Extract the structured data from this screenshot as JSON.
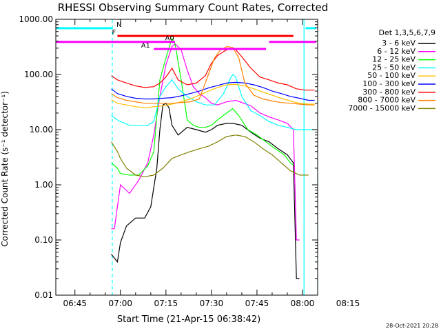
{
  "chart_data": {
    "type": "line",
    "title": "RHESSI Observing Summary Count Rates, Corrected",
    "xlabel": "Start Time (21-Apr-15 06:38:42)",
    "ylabel": "Corrected Count Rate (s⁻¹ detector⁻¹)",
    "yscale": "log",
    "xlim_min": [
      38.7,
      125.0
    ],
    "ylim": [
      0.01,
      1000
    ],
    "x_ticks": [
      {
        "min": 45,
        "label": "06:45"
      },
      {
        "min": 60,
        "label": "07:00"
      },
      {
        "min": 75,
        "label": "07:15"
      },
      {
        "min": 90,
        "label": "07:30"
      },
      {
        "min": 105,
        "label": "07:45"
      },
      {
        "min": 120,
        "label": "08:00"
      },
      {
        "min": 135,
        "label": "08:15"
      }
    ],
    "y_ticks": [
      {
        "v": 1000,
        "label": "1000.00"
      },
      {
        "v": 100,
        "label": "100.00"
      },
      {
        "v": 10,
        "label": "10.00"
      },
      {
        "v": 1,
        "label": "1.00"
      },
      {
        "v": 0.1,
        "label": "0.10"
      },
      {
        "v": 0.01,
        "label": "0.01"
      }
    ],
    "legend_title": "Det 1,3,5,6,7,9",
    "series": [
      {
        "name": "3 - 6 keV",
        "color": "#000000",
        "points": [
          [
            57,
            0.055
          ],
          [
            59,
            0.04
          ],
          [
            60,
            0.09
          ],
          [
            62,
            0.18
          ],
          [
            65,
            0.25
          ],
          [
            68,
            0.25
          ],
          [
            70,
            0.4
          ],
          [
            72,
            2
          ],
          [
            73,
            10
          ],
          [
            74,
            28
          ],
          [
            75,
            30
          ],
          [
            76,
            25
          ],
          [
            77,
            12
          ],
          [
            79,
            8
          ],
          [
            82,
            11
          ],
          [
            85,
            10
          ],
          [
            88,
            9
          ],
          [
            90,
            10
          ],
          [
            92,
            12
          ],
          [
            95,
            13
          ],
          [
            97,
            13
          ],
          [
            100,
            12
          ],
          [
            103,
            9
          ],
          [
            106,
            7
          ],
          [
            109,
            6
          ],
          [
            112,
            4.5
          ],
          [
            115,
            3.5
          ],
          [
            117,
            2.5
          ],
          [
            118,
            0.02
          ],
          [
            119,
            0.02
          ]
        ]
      },
      {
        "name": "6 - 12 keV",
        "color": "#ff00ff",
        "points": [
          [
            57,
            0.16
          ],
          [
            58,
            0.16
          ],
          [
            59,
            0.4
          ],
          [
            60,
            1.0
          ],
          [
            63,
            0.7
          ],
          [
            66,
            1.2
          ],
          [
            69,
            2.5
          ],
          [
            71,
            8
          ],
          [
            73,
            40
          ],
          [
            75,
            150
          ],
          [
            77,
            320
          ],
          [
            78,
            360
          ],
          [
            80,
            280
          ],
          [
            82,
            120
          ],
          [
            84,
            60
          ],
          [
            86,
            45
          ],
          [
            88,
            38
          ],
          [
            90,
            30
          ],
          [
            92,
            28
          ],
          [
            95,
            32
          ],
          [
            98,
            34
          ],
          [
            100,
            31
          ],
          [
            103,
            27
          ],
          [
            106,
            20
          ],
          [
            109,
            17
          ],
          [
            112,
            15
          ],
          [
            115,
            13
          ],
          [
            117,
            10
          ],
          [
            118,
            0.1
          ],
          [
            119,
            0.1
          ]
        ]
      },
      {
        "name": "12 - 25 keV",
        "color": "#00ff00",
        "points": [
          [
            57,
            2.5
          ],
          [
            59,
            2.0
          ],
          [
            60,
            1.6
          ],
          [
            63,
            1.5
          ],
          [
            66,
            1.5
          ],
          [
            69,
            2.2
          ],
          [
            71,
            4
          ],
          [
            73,
            80
          ],
          [
            75,
            200
          ],
          [
            77,
            450
          ],
          [
            78,
            360
          ],
          [
            80,
            80
          ],
          [
            82,
            15
          ],
          [
            84,
            12
          ],
          [
            86,
            11
          ],
          [
            88,
            11
          ],
          [
            90,
            12
          ],
          [
            92,
            15
          ],
          [
            95,
            20
          ],
          [
            97,
            24
          ],
          [
            99,
            18
          ],
          [
            102,
            10
          ],
          [
            105,
            8
          ],
          [
            108,
            6
          ],
          [
            111,
            4.5
          ],
          [
            114,
            3.5
          ],
          [
            116,
            2.5
          ],
          [
            117,
            2.3
          ]
        ]
      },
      {
        "name": "25 - 50 keV",
        "color": "#00ffff",
        "points": [
          [
            57,
            18
          ],
          [
            59,
            15
          ],
          [
            60,
            14
          ],
          [
            63,
            12
          ],
          [
            66,
            12
          ],
          [
            69,
            12
          ],
          [
            71,
            14
          ],
          [
            73,
            40
          ],
          [
            75,
            60
          ],
          [
            77,
            80
          ],
          [
            79,
            55
          ],
          [
            82,
            40
          ],
          [
            85,
            32
          ],
          [
            88,
            28
          ],
          [
            91,
            28
          ],
          [
            94,
            45
          ],
          [
            96,
            80
          ],
          [
            97,
            100
          ],
          [
            98,
            90
          ],
          [
            100,
            40
          ],
          [
            103,
            22
          ],
          [
            106,
            18
          ],
          [
            109,
            14
          ],
          [
            112,
            12
          ],
          [
            115,
            11
          ],
          [
            118,
            10
          ],
          [
            122,
            10
          ],
          [
            124,
            10
          ]
        ]
      },
      {
        "name": "50 - 100 keV",
        "color": "#ffc000",
        "points": [
          [
            57,
            35
          ],
          [
            59,
            30
          ],
          [
            62,
            28
          ],
          [
            65,
            26
          ],
          [
            68,
            25
          ],
          [
            71,
            26
          ],
          [
            74,
            27
          ],
          [
            77,
            29
          ],
          [
            80,
            32
          ],
          [
            83,
            36
          ],
          [
            86,
            42
          ],
          [
            89,
            50
          ],
          [
            92,
            58
          ],
          [
            95,
            65
          ],
          [
            98,
            66
          ],
          [
            101,
            62
          ],
          [
            104,
            55
          ],
          [
            107,
            48
          ],
          [
            110,
            42
          ],
          [
            113,
            37
          ],
          [
            116,
            33
          ],
          [
            119,
            30
          ],
          [
            122,
            29
          ],
          [
            124,
            29
          ]
        ]
      },
      {
        "name": "100 - 300 keV",
        "color": "#0000ff",
        "points": [
          [
            57,
            55
          ],
          [
            59,
            45
          ],
          [
            62,
            40
          ],
          [
            65,
            37
          ],
          [
            68,
            36
          ],
          [
            71,
            36
          ],
          [
            74,
            37
          ],
          [
            77,
            38
          ],
          [
            80,
            41
          ],
          [
            83,
            45
          ],
          [
            86,
            50
          ],
          [
            89,
            57
          ],
          [
            92,
            63
          ],
          [
            95,
            70
          ],
          [
            98,
            72
          ],
          [
            101,
            70
          ],
          [
            104,
            65
          ],
          [
            107,
            58
          ],
          [
            110,
            50
          ],
          [
            113,
            45
          ],
          [
            116,
            40
          ],
          [
            119,
            37
          ],
          [
            122,
            34
          ],
          [
            124,
            34
          ]
        ]
      },
      {
        "name": "300 - 800 keV",
        "color": "#ff0000",
        "points": [
          [
            57,
            95
          ],
          [
            59,
            80
          ],
          [
            62,
            70
          ],
          [
            65,
            62
          ],
          [
            68,
            58
          ],
          [
            71,
            60
          ],
          [
            73,
            70
          ],
          [
            75,
            90
          ],
          [
            77,
            130
          ],
          [
            79,
            80
          ],
          [
            82,
            65
          ],
          [
            85,
            70
          ],
          [
            88,
            95
          ],
          [
            90,
            160
          ],
          [
            92,
            220
          ],
          [
            94,
            260
          ],
          [
            96,
            300
          ],
          [
            98,
            280
          ],
          [
            100,
            210
          ],
          [
            103,
            130
          ],
          [
            106,
            90
          ],
          [
            109,
            80
          ],
          [
            112,
            70
          ],
          [
            115,
            65
          ],
          [
            118,
            55
          ],
          [
            121,
            52
          ],
          [
            124,
            52
          ]
        ]
      },
      {
        "name": "800 - 7000 keV",
        "color": "#ff8000",
        "points": [
          [
            57,
            45
          ],
          [
            59,
            38
          ],
          [
            62,
            34
          ],
          [
            65,
            32
          ],
          [
            68,
            30
          ],
          [
            71,
            30
          ],
          [
            74,
            30
          ],
          [
            77,
            30
          ],
          [
            80,
            31
          ],
          [
            83,
            32
          ],
          [
            86,
            36
          ],
          [
            89,
            100
          ],
          [
            91,
            200
          ],
          [
            93,
            280
          ],
          [
            95,
            320
          ],
          [
            97,
            310
          ],
          [
            99,
            200
          ],
          [
            101,
            70
          ],
          [
            104,
            42
          ],
          [
            107,
            36
          ],
          [
            110,
            33
          ],
          [
            113,
            31
          ],
          [
            116,
            30
          ],
          [
            119,
            29
          ],
          [
            122,
            28
          ],
          [
            124,
            28
          ]
        ]
      },
      {
        "name": "7000 - 15000 keV",
        "color": "#808000",
        "points": [
          [
            57,
            6
          ],
          [
            59,
            4
          ],
          [
            60,
            3
          ],
          [
            62,
            2
          ],
          [
            65,
            1.5
          ],
          [
            68,
            1.4
          ],
          [
            71,
            1.5
          ],
          [
            74,
            2
          ],
          [
            77,
            3
          ],
          [
            80,
            3.5
          ],
          [
            83,
            4
          ],
          [
            86,
            4.5
          ],
          [
            89,
            5
          ],
          [
            92,
            6
          ],
          [
            95,
            7.5
          ],
          [
            98,
            8
          ],
          [
            101,
            7.5
          ],
          [
            104,
            6
          ],
          [
            107,
            4.5
          ],
          [
            110,
            3.5
          ],
          [
            113,
            2.5
          ],
          [
            116,
            1.8
          ],
          [
            119,
            1.5
          ],
          [
            122,
            1.5
          ]
        ]
      }
    ],
    "annotations": [
      {
        "text": "N",
        "color": "#00ffff",
        "segments": [
          [
            38.7,
            57.5
          ],
          [
            121,
            124.5
          ]
        ],
        "y": 690,
        "label_x": 58.7
      },
      {
        "text": "F",
        "color": "#ff0000",
        "segments": [
          [
            59,
            117
          ]
        ],
        "y": 500,
        "label_x": 57.2
      },
      {
        "text": "A0",
        "color": "#ff00ff",
        "segments": [
          [
            38.7,
            78
          ],
          [
            109,
            124.5
          ]
        ],
        "y": 390,
        "label_x": 74.7
      },
      {
        "text": "A1",
        "color": "#ff00ff",
        "segments": [
          [
            71,
            108
          ]
        ],
        "y": 290,
        "label_x": 66.8
      }
    ],
    "vlines": [
      {
        "x": 57.3,
        "color": "#00ffff",
        "style": "dashed"
      },
      {
        "x": 120.5,
        "color": "#00ffff",
        "style": "solid"
      },
      {
        "x": 125.0,
        "color": "#00ffff",
        "style": "dashed"
      }
    ]
  },
  "footer": {
    "date": "28-Oct-2021 20:28"
  }
}
